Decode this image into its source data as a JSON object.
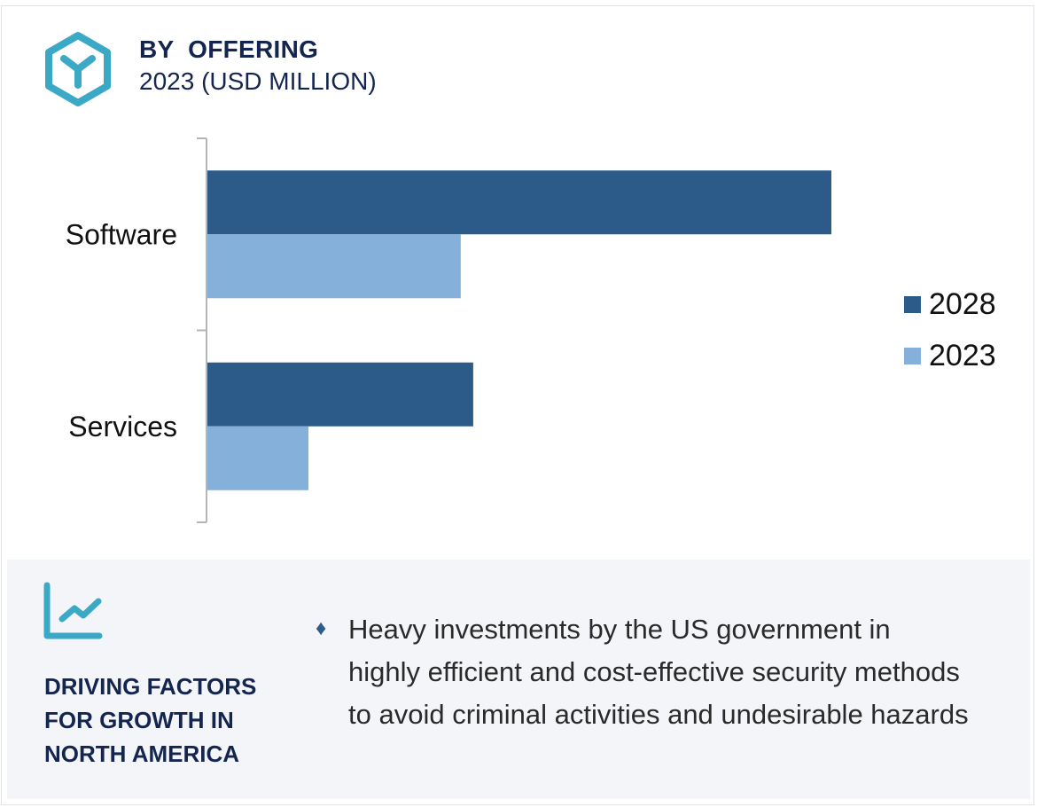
{
  "header": {
    "icon": "hexagon-y-icon",
    "title": "BY  OFFERING",
    "subtitle": "2023 (USD MILLION)"
  },
  "colors": {
    "series_2028": "#2c5b8a",
    "series_2023": "#85b0d9",
    "accent_icon": "#3ba8c6",
    "heading_text": "#14264f",
    "panel_bg": "#f3f5f9",
    "axis": "#b5b5b5"
  },
  "chart_data": {
    "type": "bar",
    "orientation": "horizontal",
    "title": "BY  OFFERING",
    "subtitle": "2023 (USD MILLION)",
    "categories": [
      "Software",
      "Services"
    ],
    "series": [
      {
        "name": "2028",
        "values": [
          100,
          42.6
        ]
      },
      {
        "name": "2023",
        "values": [
          40.6,
          16.2
        ]
      }
    ],
    "value_note": "relative bar lengths (no value axis shown); Software 2028 = 100",
    "xlabel": "",
    "ylabel": "",
    "xlim": [
      0,
      100
    ],
    "grid": false,
    "legend_position": "right",
    "legend": [
      "2028",
      "2023"
    ]
  },
  "footer": {
    "icon": "line-chart-icon",
    "heading": "DRIVING FACTORS FOR GROWTH IN NORTH AMERICA",
    "bullet_icon": "diamond-icon",
    "bullets": [
      "Heavy investments by the US government in highly efficient and cost-effective security methods to avoid criminal activities and undesirable hazards"
    ]
  }
}
